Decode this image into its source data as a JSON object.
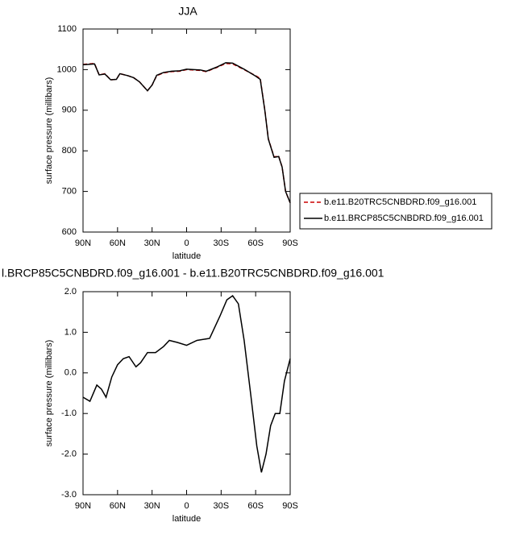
{
  "chart_data": [
    {
      "type": "line",
      "title": "JJA",
      "xlabel": "latitude",
      "ylabel": "surface pressure (millibars)",
      "x": [
        90,
        80,
        76,
        71,
        66,
        61,
        58,
        51,
        46,
        41,
        34,
        30,
        26,
        20,
        13,
        6,
        0,
        -12,
        -17,
        -26,
        -34,
        -40,
        -50,
        -60,
        -64,
        -68,
        -71,
        -76,
        -80,
        -83,
        -86,
        -90
      ],
      "series": [
        {
          "name": "b.e11.B20TRC5CNBDRD.f09_g16.001",
          "color": "#cc0000",
          "dash": true,
          "values": [
            1013,
            1015,
            987,
            990,
            975,
            976,
            990,
            985,
            980,
            970,
            948,
            962,
            985,
            992,
            995,
            996,
            1000,
            998,
            995,
            1005,
            1015,
            1014,
            1000,
            985,
            978,
            900,
            830,
            785,
            787,
            760,
            700,
            672
          ]
        },
        {
          "name": "b.e11.BRCP85C5CNBDRD.f09_g16.001",
          "color": "#000000",
          "dash": false,
          "values": [
            1012,
            1014,
            987,
            989,
            975,
            976,
            990,
            985,
            980,
            970,
            948,
            962,
            986,
            993,
            996,
            997,
            1001,
            999,
            996,
            1006,
            1017,
            1016,
            1001,
            984,
            976,
            899,
            829,
            784,
            786,
            760,
            700,
            672
          ]
        }
      ],
      "xlim": [
        90,
        -90
      ],
      "ylim": [
        600,
        1100
      ],
      "xticks": [
        {
          "value": 90,
          "label": "90N"
        },
        {
          "value": 60,
          "label": "60N"
        },
        {
          "value": 30,
          "label": "30N"
        },
        0,
        {
          "value": -30,
          "label": "30S"
        },
        {
          "value": -60,
          "label": "60S"
        },
        {
          "value": -90,
          "label": "90S"
        }
      ],
      "yticks": [
        600,
        700,
        800,
        900,
        1000,
        1100
      ],
      "legend": "right"
    },
    {
      "type": "line",
      "title": "l.BRCP85C5CNBDRD.f09_g16.001 - b.e11.B20TRC5CNBDRD.f09_g16.001",
      "xlabel": "latitude",
      "ylabel": "surface pressure (millibars)",
      "x": [
        90,
        84,
        78,
        74,
        70,
        65,
        60,
        55,
        50,
        44,
        40,
        34,
        27,
        20,
        15,
        8,
        0,
        -9,
        -20,
        -29,
        -35,
        -40,
        -45,
        -50,
        -56,
        -61,
        -65,
        -69,
        -73,
        -77,
        -81,
        -85,
        -90
      ],
      "series": [
        {
          "color": "#000000",
          "dash": false,
          "values": [
            -0.6,
            -0.7,
            -0.3,
            -0.4,
            -0.6,
            -0.1,
            0.2,
            0.35,
            0.4,
            0.15,
            0.25,
            0.5,
            0.5,
            0.65,
            0.8,
            0.75,
            0.68,
            0.8,
            0.85,
            1.4,
            1.8,
            1.9,
            1.7,
            0.8,
            -0.6,
            -1.8,
            -2.45,
            -2.0,
            -1.3,
            -1.0,
            -1.0,
            -0.2,
            0.35
          ]
        }
      ],
      "xlim": [
        90,
        -90
      ],
      "ylim": [
        -3,
        2
      ],
      "xticks": [
        {
          "value": 90,
          "label": "90N"
        },
        {
          "value": 60,
          "label": "60N"
        },
        {
          "value": 30,
          "label": "30N"
        },
        0,
        {
          "value": -30,
          "label": "30S"
        },
        {
          "value": -60,
          "label": "60S"
        },
        {
          "value": -90,
          "label": "90S"
        }
      ],
      "yticks": [
        {
          "value": -3,
          "label": "-3.0"
        },
        {
          "value": -2,
          "label": "-2.0"
        },
        {
          "value": -1,
          "label": "-1.0"
        },
        {
          "value": 0,
          "label": "0.0"
        },
        {
          "value": 1,
          "label": "1.0"
        },
        {
          "value": 2,
          "label": "2.0"
        }
      ]
    }
  ]
}
